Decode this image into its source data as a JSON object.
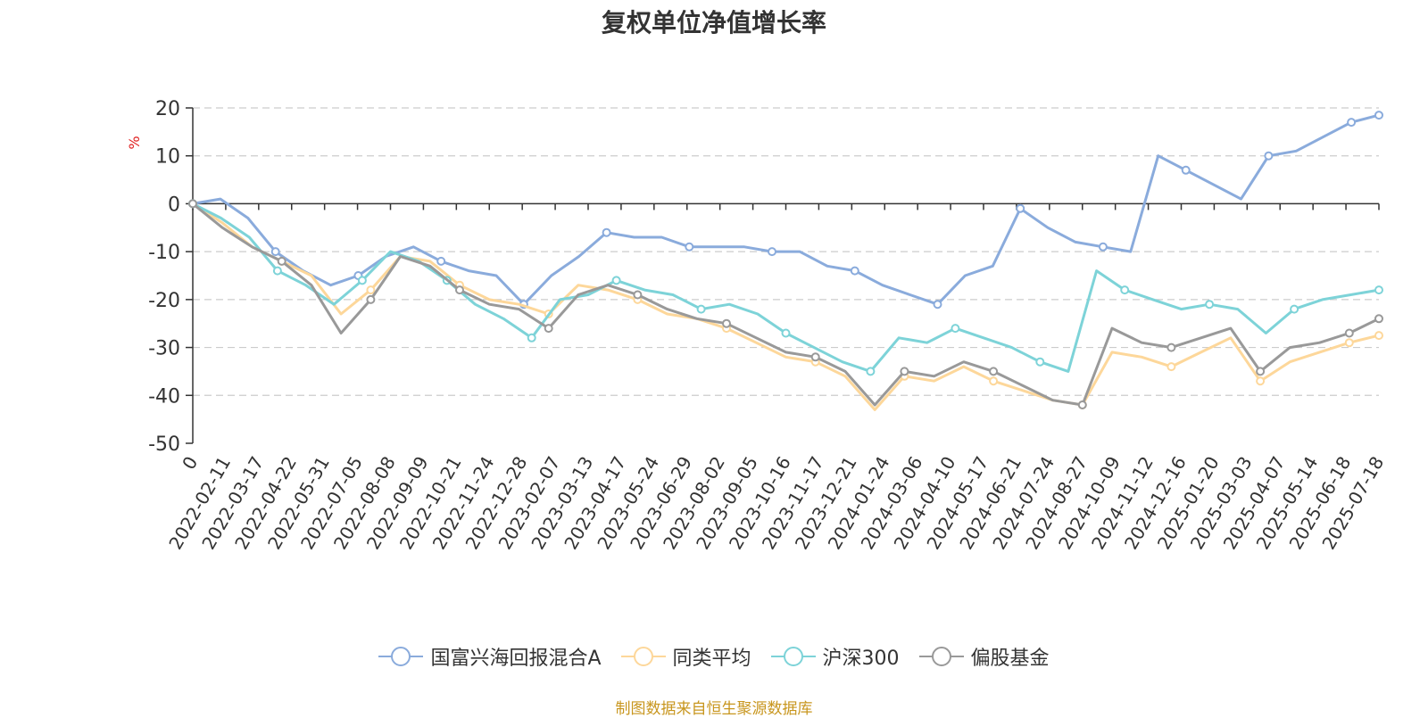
{
  "chart_data": {
    "type": "line",
    "title": "复权单位净值增长率",
    "ylabel": "%",
    "ylim": [
      -50,
      20
    ],
    "yticks": [
      20,
      10,
      0,
      -10,
      -20,
      -30,
      -40,
      -50
    ],
    "grid": true,
    "legend_position": "bottom",
    "x_ticks": [
      "0",
      "2022-02-11",
      "2022-03-17",
      "2022-04-22",
      "2022-05-31",
      "2022-07-05",
      "2022-08-08",
      "2022-09-09",
      "2022-10-21",
      "2022-11-24",
      "2022-12-28",
      "2023-02-07",
      "2023-03-13",
      "2023-04-17",
      "2023-05-24",
      "2023-06-29",
      "2023-08-02",
      "2023-09-05",
      "2023-10-16",
      "2023-11-17",
      "2023-12-21",
      "2024-01-24",
      "2024-03-06",
      "2024-04-10",
      "2024-05-17",
      "2024-06-21",
      "2024-07-24",
      "2024-08-27",
      "2024-10-09",
      "2024-11-12",
      "2024-12-16",
      "2025-01-20",
      "2025-03-03",
      "2025-04-07",
      "2025-05-14",
      "2025-06-18",
      "2025-07-18"
    ],
    "series": [
      {
        "name": "国富兴海回报混合A",
        "color": "#8aabdc",
        "values": [
          0,
          1,
          -3,
          -10,
          -14,
          -17,
          -15,
          -11,
          -9,
          -12,
          -14,
          -15,
          -21,
          -15,
          -11,
          -6,
          -7,
          -7,
          -9,
          -9,
          -9,
          -10,
          -10,
          -13,
          -14,
          -17,
          -19,
          -21,
          -15,
          -13,
          -1,
          -5,
          -8,
          -9,
          -10,
          10,
          7,
          4,
          1,
          10,
          11,
          14,
          17,
          18.5
        ]
      },
      {
        "name": "同类平均",
        "color": "#fdd79a",
        "values": [
          0,
          -4,
          -9,
          -12,
          -15,
          -23,
          -18,
          -11,
          -12,
          -17,
          -20,
          -21,
          -23,
          -17,
          -18,
          -20,
          -23,
          -24,
          -26,
          -29,
          -32,
          -33,
          -36,
          -43,
          -36,
          -37,
          -34,
          -37,
          -39,
          -41,
          -42,
          -31,
          -32,
          -34,
          -31,
          -28,
          -37,
          -33,
          -31,
          -29,
          -27.5
        ]
      },
      {
        "name": "沪深300",
        "color": "#7dd3d8",
        "values": [
          0,
          -3,
          -7,
          -14,
          -17,
          -21,
          -16,
          -10,
          -12,
          -16,
          -21,
          -24,
          -28,
          -20,
          -19,
          -16,
          -18,
          -19,
          -22,
          -21,
          -23,
          -27,
          -30,
          -33,
          -35,
          -28,
          -29,
          -26,
          -28,
          -30,
          -33,
          -35,
          -14,
          -18,
          -20,
          -22,
          -21,
          -22,
          -27,
          -22,
          -20,
          -19,
          -18
        ]
      },
      {
        "name": "偏股基金",
        "color": "#999999",
        "values": [
          0,
          -5,
          -9,
          -12,
          -17,
          -27,
          -20,
          -11,
          -13,
          -18,
          -21,
          -22,
          -26,
          -19,
          -17,
          -19,
          -22,
          -24,
          -25,
          -28,
          -31,
          -32,
          -35,
          -42,
          -35,
          -36,
          -33,
          -35,
          -38,
          -41,
          -42,
          -26,
          -29,
          -30,
          -28,
          -26,
          -35,
          -30,
          -29,
          -27,
          -24
        ]
      }
    ]
  },
  "source_note": "制图数据来自恒生聚源数据库"
}
